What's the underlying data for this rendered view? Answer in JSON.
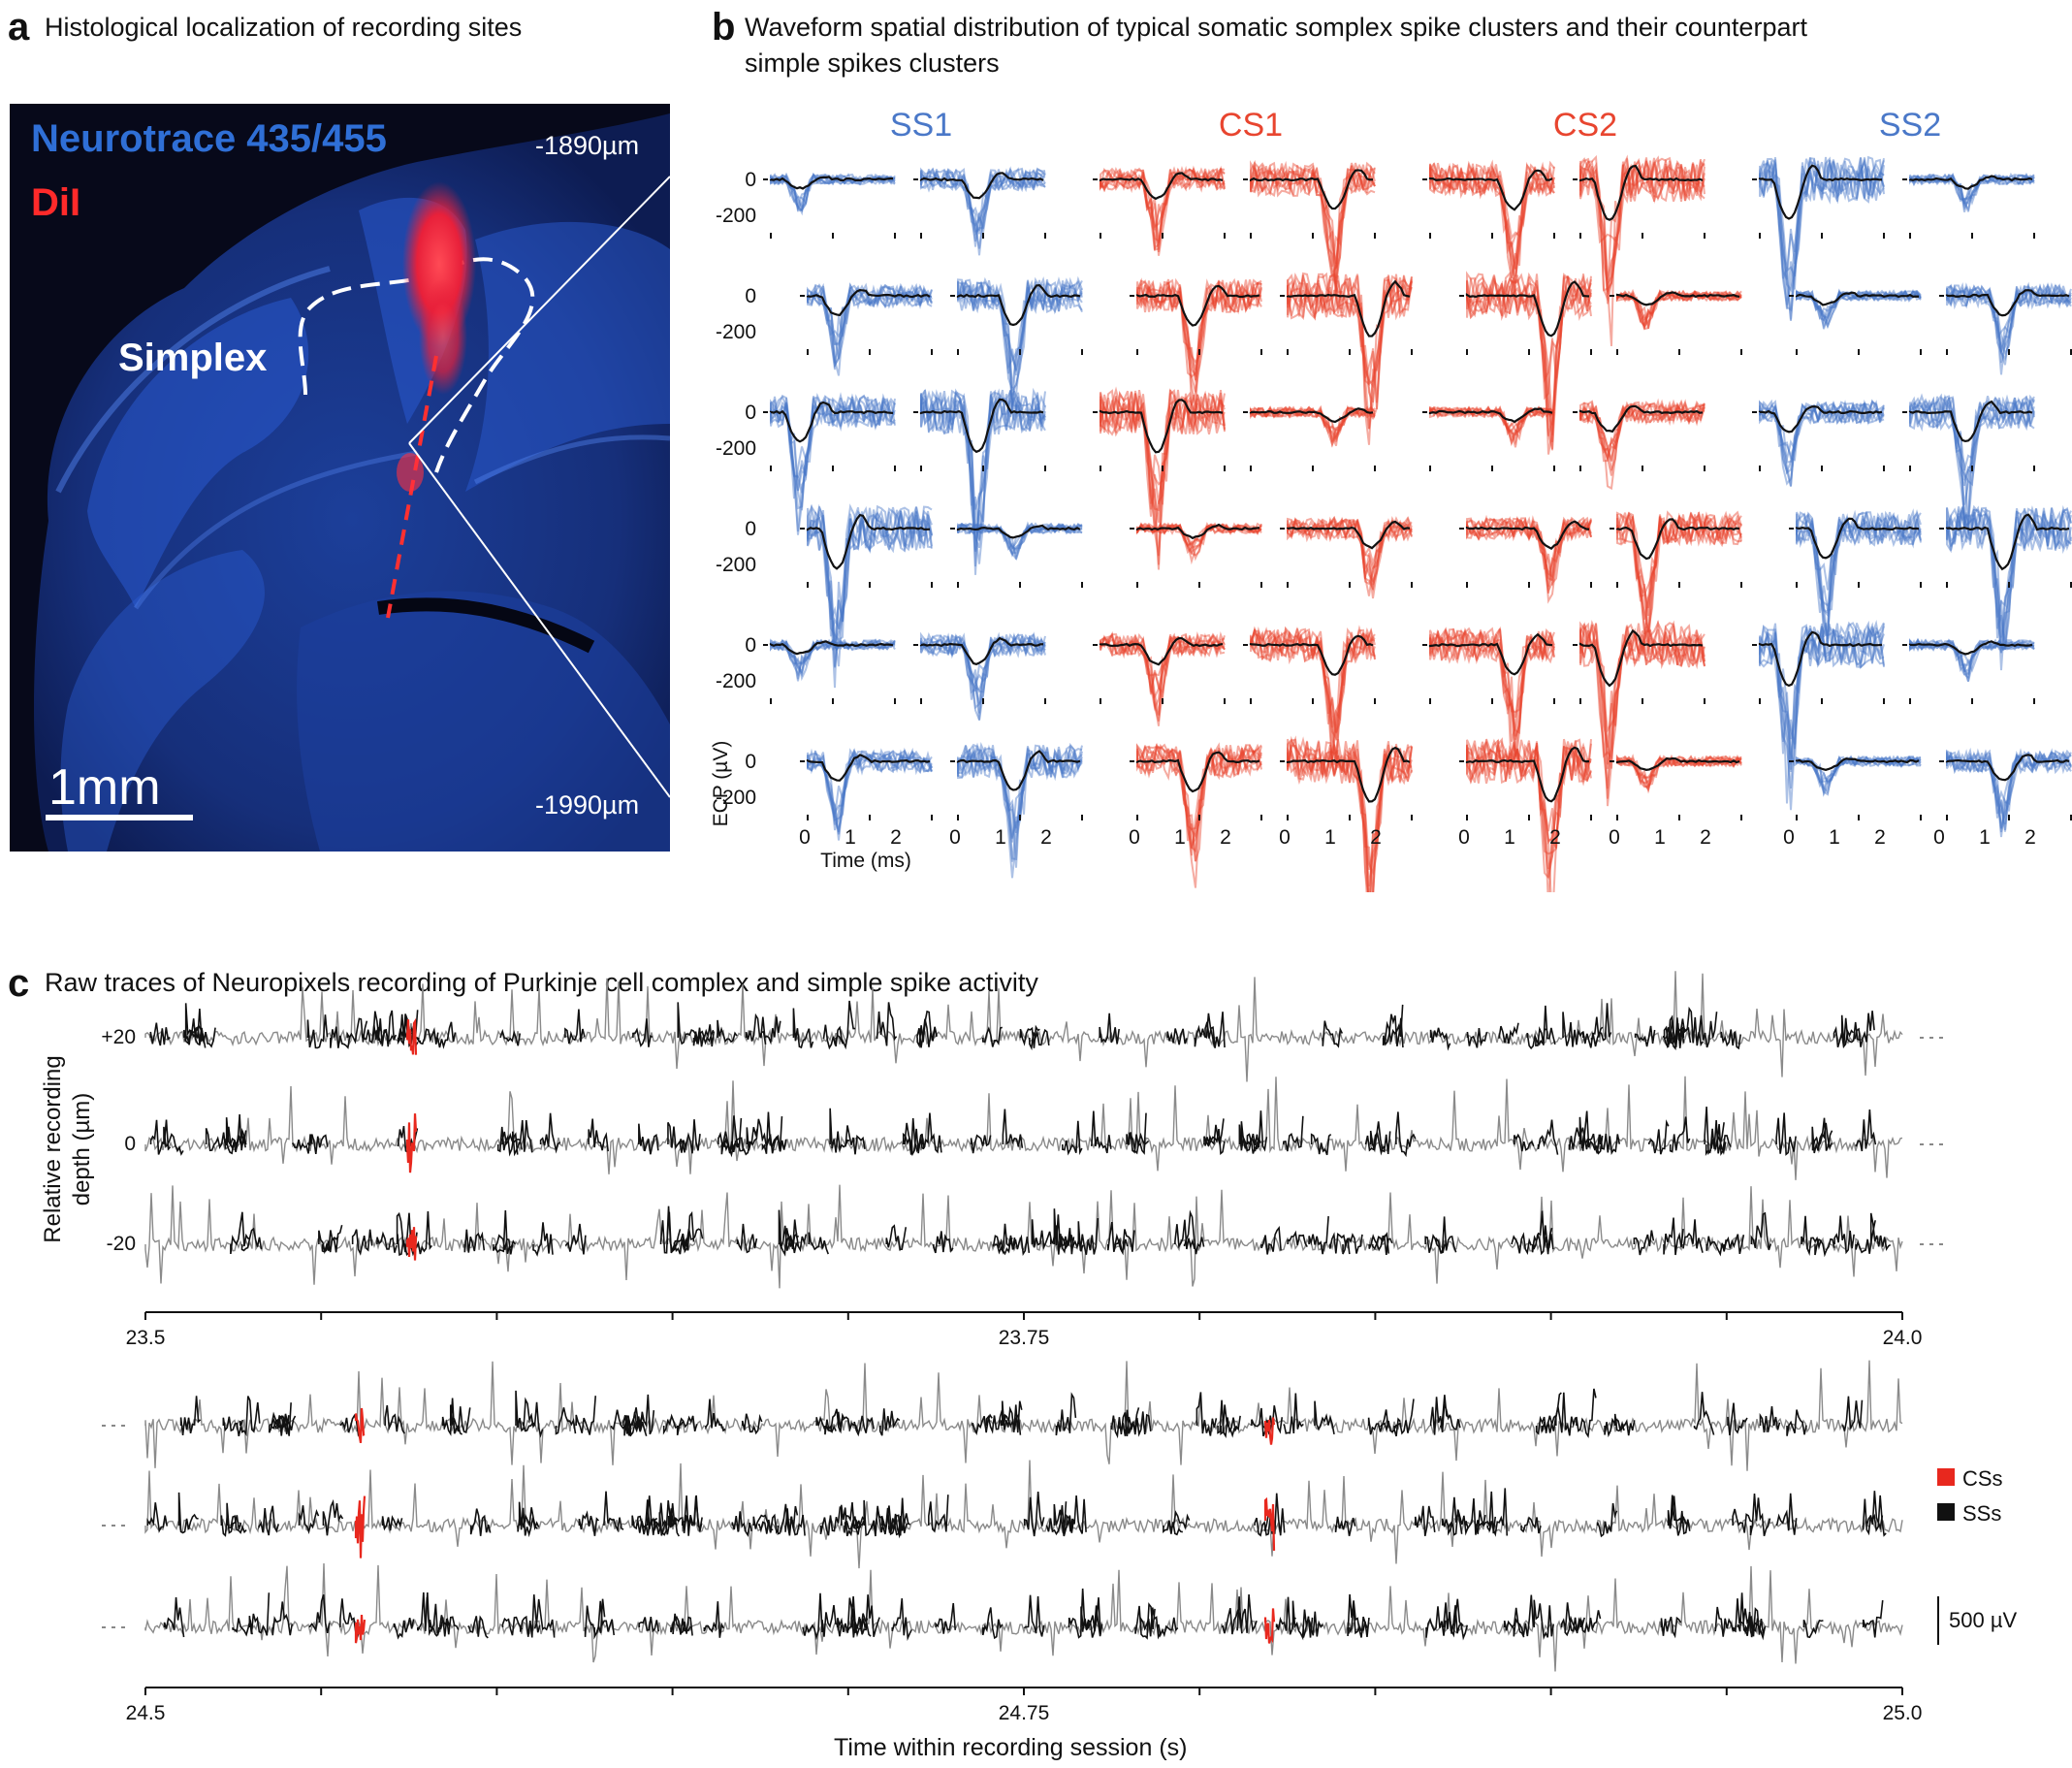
{
  "panel_a": {
    "letter": "a",
    "title": "Histological localization of recording sites",
    "stain_label": "Neurotrace 435/455",
    "dye_label": "DiI",
    "region_label": "Simplex",
    "depth_top": "-1890µm",
    "depth_bottom": "-1990µm",
    "scale_bar": "1mm",
    "colors": {
      "stain": "#2f6fd6",
      "dye": "#ff2a2a",
      "background": "#07091a"
    }
  },
  "panel_b": {
    "letter": "b",
    "title_line1": "Waveform spatial distribution of typical somatic somplex spike clusters and their counterpart",
    "title_line2": "simple spikes clusters",
    "groups": [
      {
        "name": "SS1",
        "color": "#4a78c8"
      },
      {
        "name": "CS1",
        "color": "#e8452f"
      },
      {
        "name": "CS2",
        "color": "#e8452f"
      },
      {
        "name": "SS2",
        "color": "#4a78c8"
      }
    ],
    "y_ticks": [
      "0",
      "-200"
    ],
    "x_ticks": [
      "0",
      "1",
      "2"
    ],
    "ylabel": "ECP (µV)",
    "xlabel": "Time (ms)"
  },
  "panel_c": {
    "letter": "c",
    "title": "Raw traces of Neuropixels recording of Purkinje cell complex and simple spike activity",
    "ylabel_line1": "Relative recording",
    "ylabel_line2": "depth (µm)",
    "depth_labels": [
      "+20",
      "0",
      "-20"
    ],
    "top_axis_ticks": [
      "23.5",
      "23.75",
      "24.0"
    ],
    "bottom_axis_ticks": [
      "24.5",
      "24.75",
      "25.0"
    ],
    "xlabel": "Time within recording session (s)",
    "legend": [
      {
        "label": "CSs",
        "color": "#e8281e"
      },
      {
        "label": "SSs",
        "color": "#111111"
      }
    ],
    "scale_bar": "500 µV"
  }
}
